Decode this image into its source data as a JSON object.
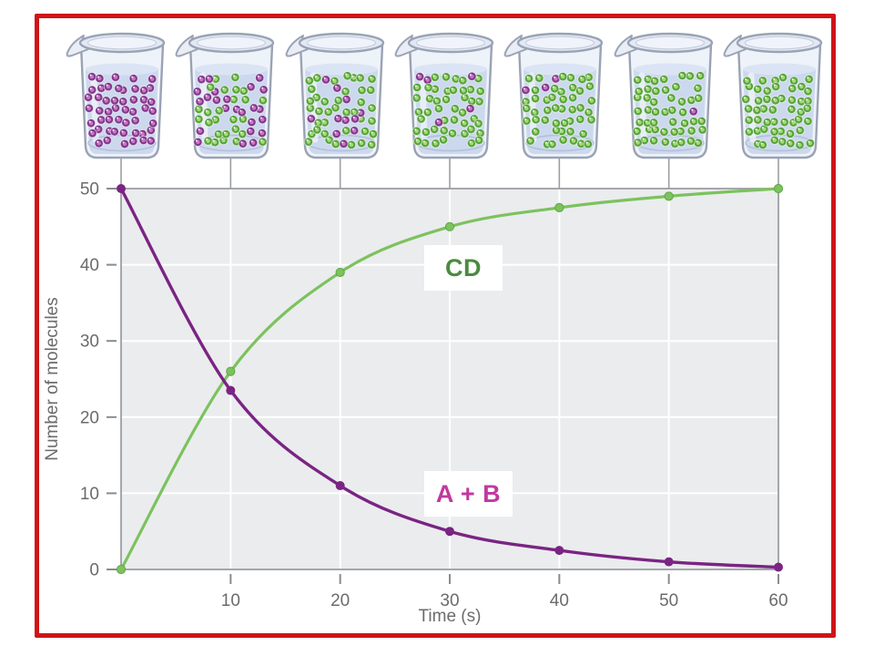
{
  "labels": {
    "cd": "CD",
    "ab": "A + B"
  },
  "colors": {
    "frame_red": "#cf1418",
    "plot_bg": "#ebecee",
    "grid": "#ffffff",
    "axis": "#9c9ea1",
    "tick_text": "#6a6b6d",
    "purple_curve": "#7a2483",
    "green_curve": "#7cc25e",
    "cd_text": "#4a8a3f",
    "ab_text": "#c2389f",
    "molecule_purple_ring": "#7d3a8a",
    "molecule_purple_center": "#ce74c6",
    "molecule_green_ring": "#55a33c",
    "molecule_green_center": "#a7d878",
    "liquid": "#ccd8ee",
    "glass_stroke": "#9aa3b4"
  },
  "chart_data": {
    "type": "line",
    "title": "",
    "xlabel": "Time (s)",
    "ylabel": "Number of molecules",
    "x": [
      0,
      10,
      20,
      30,
      40,
      50,
      60
    ],
    "xlim": [
      0,
      60
    ],
    "ylim": [
      0,
      50
    ],
    "x_ticks": [
      10,
      20,
      30,
      40,
      50,
      60
    ],
    "y_ticks": [
      0,
      10,
      20,
      30,
      40,
      50
    ],
    "grid": true,
    "legend_position": "inline-labels",
    "series": [
      {
        "name": "A + B",
        "color": "#7a2483",
        "values": [
          50,
          23.5,
          11,
          5,
          2.5,
          1,
          0.3
        ]
      },
      {
        "name": "CD",
        "color": "#7cc25e",
        "values": [
          0,
          26,
          39,
          45,
          47.5,
          49,
          50
        ]
      }
    ]
  },
  "beakers": {
    "count": 7,
    "times": [
      0,
      10,
      20,
      30,
      40,
      50,
      60
    ],
    "molecules_per_beaker": 50,
    "purple_counts": [
      50,
      24,
      11,
      5,
      3,
      1,
      0
    ],
    "green_counts": [
      0,
      26,
      39,
      45,
      47,
      49,
      50
    ]
  }
}
